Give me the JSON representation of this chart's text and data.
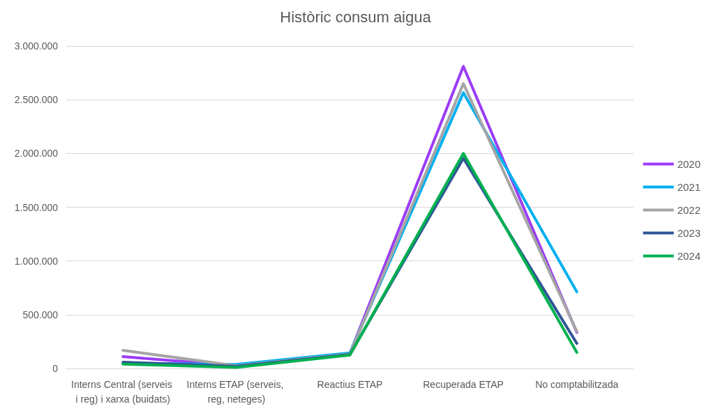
{
  "chart_data": {
    "type": "line",
    "title": "Històric consum aigua",
    "categories": [
      "Interns Central (serveis i reg) i xarxa (buidats)",
      "Interns ETAP (serveis, reg, neteges)",
      "Reactius ETAP",
      "Recuperada ETAP",
      "No comptabilitzada"
    ],
    "series": [
      {
        "name": "2020",
        "color": "#9b3cf5",
        "values": [
          110000,
          25000,
          140000,
          2810000,
          335000
        ]
      },
      {
        "name": "2021",
        "color": "#00b0f0",
        "values": [
          50000,
          38000,
          145000,
          2565000,
          713000
        ]
      },
      {
        "name": "2022",
        "color": "#a5a5a5",
        "values": [
          168000,
          25000,
          135000,
          2650000,
          343000
        ]
      },
      {
        "name": "2023",
        "color": "#2f5597",
        "values": [
          58000,
          20000,
          130000,
          1955000,
          233000
        ]
      },
      {
        "name": "2024",
        "color": "#00b050",
        "values": [
          40000,
          10000,
          125000,
          2000000,
          149000
        ]
      }
    ],
    "ylim": [
      0,
      3000000
    ],
    "yticks": [
      {
        "value": 0,
        "label": "0"
      },
      {
        "value": 500000,
        "label": "500.000"
      },
      {
        "value": 1000000,
        "label": "1.000.000"
      },
      {
        "value": 1500000,
        "label": "1.500.000"
      },
      {
        "value": 2000000,
        "label": "2.000.000"
      },
      {
        "value": 2500000,
        "label": "2.500.000"
      },
      {
        "value": 3000000,
        "label": "3.000.000"
      }
    ],
    "grid": "y",
    "legend": "right",
    "marker": "none",
    "line_style": "solid"
  }
}
